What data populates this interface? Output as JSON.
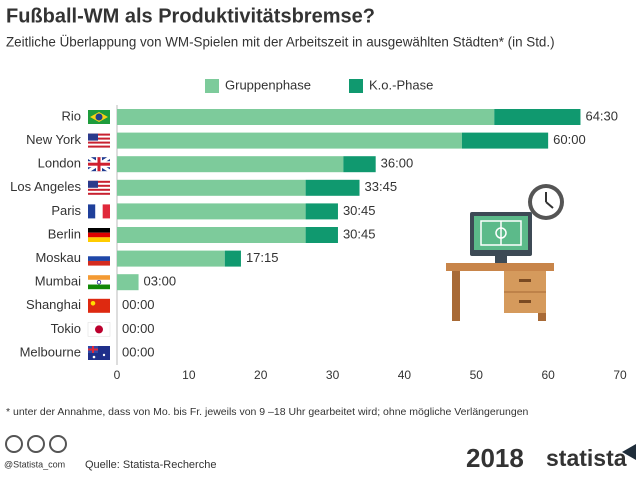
{
  "chart_data": {
    "type": "stacked-barh",
    "title": "Fußball-WM als Produktivitätsbremse?",
    "subtitle": "Zeitliche Überlappung von WM-Spielen mit der Arbeitszeit in ausgewählten Städten* (in Std.)",
    "categories": [
      "Rio",
      "New York",
      "London",
      "Los Angeles",
      "Paris",
      "Berlin",
      "Moskau",
      "Mumbai",
      "Shanghai",
      "Tokio",
      "Melbourne"
    ],
    "series": [
      {
        "name": "Gruppenphase",
        "color": "#7dcb9b",
        "values": [
          52.5,
          48,
          31.5,
          26.25,
          26.25,
          26.25,
          15,
          3,
          0,
          0,
          0
        ]
      },
      {
        "name": "K.o.-Phase",
        "color": "#10996f",
        "values": [
          12,
          12,
          4.5,
          7.5,
          4.5,
          4.5,
          2.25,
          0,
          0,
          0,
          0
        ]
      }
    ],
    "totals": {
      "values": [
        64.5,
        60,
        36,
        33.75,
        30.75,
        30.75,
        17.25,
        3,
        0,
        0,
        0
      ],
      "value_labels": [
        "64:30",
        "60:00",
        "36:00",
        "33:45",
        "30:45",
        "30:45",
        "17:15",
        "03:00",
        "00:00",
        "00:00",
        "00:00"
      ]
    },
    "xlim": [
      0,
      70
    ],
    "xticks": [
      0,
      10,
      20,
      30,
      40,
      50,
      60,
      70
    ],
    "grid": false,
    "legend": "top"
  },
  "footnote": "* unter der Annahme, dass von Mo. bis Fr. jeweils von 9 –18 Uhr gearbeitet wird; ohne mögliche Verlängerungen",
  "handle": "@Statista_com",
  "source": "Quelle: Statista-Recherche",
  "event_logo": "2018",
  "brand": "statista"
}
